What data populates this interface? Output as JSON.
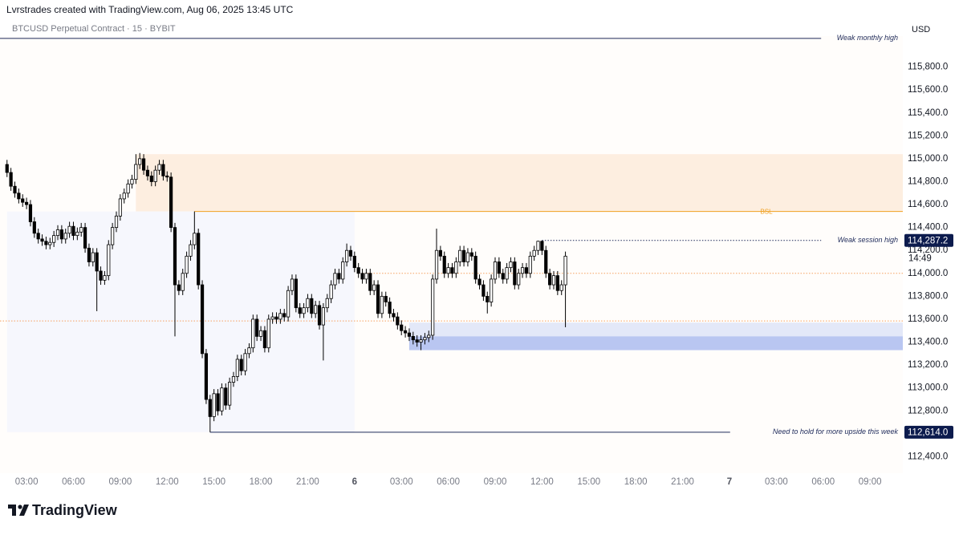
{
  "header": {
    "credit": "Lvrstrades created with TradingView.com, Aug 06, 2025 13:45 UTC",
    "symbol": "BTCUSD Perpetual Contract · 15 · BYBIT",
    "currency": "USD"
  },
  "footer": {
    "brand": "TradingView"
  },
  "chart_data": {
    "type": "candlestick",
    "x": [
      1.75,
      2,
      2.25,
      2.5,
      2.75,
      3,
      3.25,
      3.5,
      3.75,
      4,
      4.25,
      4.5,
      4.75,
      5,
      5.25,
      5.5,
      5.75,
      6,
      6.25,
      6.5,
      6.75,
      7,
      7.25,
      7.5,
      7.75,
      8,
      8.25,
      8.5,
      8.75,
      9,
      9.25,
      9.5,
      9.75,
      10,
      10.25,
      10.5,
      10.75,
      11,
      11.25,
      11.5,
      11.75,
      12,
      12.25,
      12.5,
      12.75,
      13,
      13.25,
      13.5,
      13.75,
      14,
      14.25,
      14.5,
      14.75,
      15,
      15.25,
      15.5,
      15.75,
      16,
      16.25,
      16.5,
      16.75,
      17,
      17.25,
      17.5,
      17.75,
      18,
      18.25,
      18.5,
      18.75,
      19,
      19.25,
      19.5,
      19.75,
      20,
      20.25,
      20.5,
      20.75,
      21,
      21.25,
      21.5,
      21.75,
      22,
      22.25,
      22.5,
      22.75,
      23,
      23.25,
      23.5,
      23.75,
      24,
      24.25,
      24.5,
      24.75,
      25,
      25.25,
      25.5,
      25.75,
      26,
      26.25,
      26.5,
      26.75,
      27,
      27.25,
      27.5,
      27.75,
      28,
      28.25,
      28.5,
      28.75,
      29,
      29.25,
      29.5,
      29.75,
      30,
      30.25,
      30.5,
      30.75,
      31,
      31.25,
      31.5,
      31.75,
      32,
      32.25,
      32.5,
      32.75,
      33,
      33.25,
      33.5,
      33.75,
      34,
      34.25,
      34.5,
      34.75,
      35,
      35.25,
      35.5,
      35.75,
      36,
      36.25,
      36.5,
      36.75,
      37,
      37.25,
      37.5
    ],
    "open": [
      114950,
      114880,
      114760,
      114700,
      114650,
      114620,
      114600,
      114450,
      114350,
      114300,
      114280,
      114250,
      114270,
      114330,
      114380,
      114300,
      114350,
      114410,
      114330,
      114360,
      114400,
      114220,
      114100,
      114180,
      114020,
      113940,
      113980,
      114250,
      114400,
      114500,
      114650,
      114700,
      114780,
      114820,
      114950,
      115000,
      114900,
      114850,
      114800,
      114900,
      114950,
      114850,
      114840,
      114400,
      113900,
      113850,
      114000,
      114150,
      114250,
      114350,
      113900,
      113300,
      112900,
      112750,
      112950,
      112800,
      113000,
      112850,
      113050,
      113100,
      113250,
      113150,
      113300,
      113350,
      113600,
      113450,
      113500,
      113350,
      113600,
      113620,
      113600,
      113650,
      113620,
      113850,
      113950,
      113700,
      113650,
      113700,
      113780,
      113650,
      113720,
      113550,
      113700,
      113780,
      113900,
      114000,
      113950,
      114100,
      114200,
      114150,
      114050,
      114000,
      113950,
      114000,
      113850,
      113900,
      113650,
      113800,
      113750,
      113650,
      113620,
      113550,
      113500,
      113480,
      113450,
      113420,
      113400,
      113420,
      113440,
      113460,
      113950,
      114200,
      114150,
      114000,
      114050,
      114000,
      114100,
      114200,
      114100,
      114180,
      114150,
      113950,
      113900,
      113800,
      113750,
      113950,
      114100,
      114000,
      113950,
      114050,
      114100,
      113900,
      114000,
      114050,
      114000,
      114150,
      114200,
      114280,
      114200,
      114000,
      113900,
      113980,
      113850,
      113900
    ],
    "high": [
      114990,
      114920,
      114800,
      114740,
      114690,
      114660,
      114640,
      114490,
      114390,
      114340,
      114320,
      114310,
      114370,
      114420,
      114420,
      114390,
      114450,
      114450,
      114400,
      114440,
      114440,
      114260,
      114220,
      114220,
      114060,
      114020,
      114290,
      114440,
      114540,
      114690,
      114740,
      114820,
      114860,
      115040,
      115050,
      115040,
      114940,
      114890,
      114940,
      114990,
      114990,
      114890,
      114880,
      114440,
      113940,
      114040,
      114190,
      114290,
      114540,
      114390,
      113940,
      113340,
      112940,
      112990,
      112990,
      113040,
      113040,
      113090,
      113140,
      113290,
      113290,
      113340,
      113390,
      113640,
      113640,
      113540,
      113540,
      113640,
      113660,
      113660,
      113690,
      113690,
      113890,
      113990,
      113990,
      113740,
      113740,
      113820,
      113820,
      113760,
      113760,
      113740,
      113820,
      113940,
      114040,
      114040,
      114140,
      114260,
      114240,
      114190,
      114090,
      114040,
      114040,
      114040,
      113940,
      113940,
      113840,
      113840,
      113790,
      113690,
      113660,
      113590,
      113540,
      113520,
      113490,
      113460,
      113460,
      113480,
      113500,
      113990,
      114390,
      114240,
      114190,
      114090,
      114090,
      114140,
      114240,
      114240,
      114220,
      114220,
      114190,
      113990,
      113940,
      113840,
      113990,
      114140,
      114140,
      114040,
      114090,
      114140,
      114140,
      114040,
      114090,
      114090,
      114190,
      114240,
      114285,
      114287.2,
      114240,
      114040,
      114020,
      114020,
      113940,
      114190
    ],
    "low": [
      114840,
      114720,
      114660,
      114610,
      114580,
      114560,
      114410,
      114310,
      114260,
      114240,
      114210,
      114210,
      114230,
      114290,
      114260,
      114260,
      114310,
      114290,
      114290,
      114320,
      114180,
      114060,
      114060,
      113670,
      113900,
      113900,
      113940,
      114210,
      114360,
      114460,
      114610,
      114660,
      114740,
      114780,
      114910,
      114860,
      114810,
      114760,
      114760,
      114860,
      114810,
      114800,
      114360,
      113450,
      113810,
      113810,
      113960,
      114110,
      114210,
      113860,
      113260,
      112860,
      112614,
      112710,
      112760,
      112760,
      112810,
      112810,
      113010,
      113060,
      113110,
      113110,
      113260,
      113310,
      113410,
      113410,
      113310,
      113310,
      113560,
      113560,
      113560,
      113580,
      113580,
      113810,
      113660,
      113610,
      113610,
      113660,
      113610,
      113610,
      113510,
      113240,
      113660,
      113740,
      113860,
      113910,
      113910,
      114060,
      114110,
      114010,
      113960,
      113910,
      113910,
      113810,
      113810,
      113610,
      113610,
      113710,
      113610,
      113580,
      113510,
      113460,
      113440,
      113410,
      113380,
      113360,
      113330,
      113380,
      113400,
      113420,
      113910,
      114110,
      113960,
      113960,
      113960,
      113960,
      114060,
      114060,
      114060,
      114110,
      113910,
      113860,
      113760,
      113650,
      113710,
      113910,
      113960,
      113910,
      113910,
      114010,
      113860,
      113860,
      113960,
      113960,
      113960,
      114110,
      114160,
      114160,
      113960,
      113860,
      113860,
      113810,
      113810,
      113530
    ],
    "close": [
      114880,
      114760,
      114700,
      114650,
      114620,
      114600,
      114450,
      114350,
      114300,
      114280,
      114250,
      114270,
      114330,
      114380,
      114300,
      114350,
      114410,
      114330,
      114360,
      114400,
      114220,
      114100,
      114180,
      114020,
      113940,
      113980,
      114250,
      114400,
      114500,
      114650,
      114700,
      114780,
      114820,
      114950,
      115000,
      114900,
      114850,
      114800,
      114900,
      114950,
      114850,
      114840,
      114400,
      113900,
      113850,
      114000,
      114150,
      114250,
      114350,
      113900,
      113300,
      112900,
      112750,
      112950,
      112800,
      113000,
      112850,
      113050,
      113100,
      113250,
      113150,
      113300,
      113350,
      113600,
      113450,
      113500,
      113350,
      113600,
      113620,
      113600,
      113650,
      113620,
      113850,
      113950,
      113700,
      113650,
      113700,
      113780,
      113650,
      113720,
      113550,
      113700,
      113780,
      113900,
      114000,
      113950,
      114100,
      114200,
      114150,
      114050,
      114000,
      113950,
      114000,
      113850,
      113900,
      113650,
      113800,
      113750,
      113650,
      113620,
      113550,
      113500,
      113480,
      113450,
      113420,
      113400,
      113420,
      113440,
      113460,
      113950,
      114200,
      114150,
      114000,
      114050,
      114000,
      114100,
      114200,
      114100,
      114180,
      114150,
      113950,
      113900,
      113800,
      113750,
      113950,
      114100,
      114000,
      113950,
      114050,
      114100,
      113900,
      114000,
      114050,
      114000,
      114150,
      114200,
      114280,
      114200,
      114000,
      113900,
      113980,
      113850,
      113900,
      114150
    ],
    "up_color": "#ffffff",
    "down_color": "#000000",
    "edge_color": "#000000",
    "xlim": [
      1.3,
      59.1
    ],
    "xticks": [
      {
        "value": 3,
        "label": "03:00"
      },
      {
        "value": 6,
        "label": "06:00"
      },
      {
        "value": 9,
        "label": "09:00"
      },
      {
        "value": 12,
        "label": "12:00"
      },
      {
        "value": 15,
        "label": "15:00"
      },
      {
        "value": 18,
        "label": "18:00"
      },
      {
        "value": 21,
        "label": "21:00"
      },
      {
        "value": 24,
        "label": "6"
      },
      {
        "value": 27,
        "label": "03:00"
      },
      {
        "value": 30,
        "label": "06:00"
      },
      {
        "value": 33,
        "label": "09:00"
      },
      {
        "value": 36,
        "label": "12:00"
      },
      {
        "value": 39,
        "label": "15:00"
      },
      {
        "value": 42,
        "label": "18:00"
      },
      {
        "value": 45,
        "label": "21:00"
      },
      {
        "value": 48,
        "label": "7"
      },
      {
        "value": 51,
        "label": "03:00"
      },
      {
        "value": 54,
        "label": "06:00"
      },
      {
        "value": 57,
        "label": "09:00"
      }
    ],
    "ylim": [
      112270,
      116070
    ],
    "yticks": [
      {
        "value": 112400,
        "label": "112,400.0"
      },
      {
        "value": 112600,
        "label": "112,600.0"
      },
      {
        "value": 112800,
        "label": "112,800.0"
      },
      {
        "value": 113000,
        "label": "113,000.0"
      },
      {
        "value": 113200,
        "label": "113,200.0"
      },
      {
        "value": 113400,
        "label": "113,400.0"
      },
      {
        "value": 113600,
        "label": "113,600.0"
      },
      {
        "value": 113800,
        "label": "113,800.0"
      },
      {
        "value": 114000,
        "label": "114,000.0"
      },
      {
        "value": 114200,
        "label": "114,200.0"
      },
      {
        "value": 114400,
        "label": "114,400.0"
      },
      {
        "value": 114600,
        "label": "114,600.0"
      },
      {
        "value": 114800,
        "label": "114,800.0"
      },
      {
        "value": 115000,
        "label": "115,000.0"
      },
      {
        "value": 115200,
        "label": "115,200.0"
      },
      {
        "value": 115400,
        "label": "115,400.0"
      },
      {
        "value": 115600,
        "label": "115,600.0"
      },
      {
        "value": 115800,
        "label": "115,800.0"
      }
    ],
    "zones": [
      {
        "y0": 114540,
        "y1": 115040,
        "x0": 10,
        "color": "#fdeee0"
      },
      {
        "y0": 112614,
        "y1": 114540,
        "x0": 1.75,
        "x1": 24,
        "color": "#f6f7fd"
      },
      {
        "y0": 113330,
        "y1": 113570,
        "x0": 27.5,
        "color": "#e3e8f8"
      },
      {
        "y0": 113330,
        "y1": 113450,
        "x0": 27.5,
        "color": "#b9c6f1"
      }
    ],
    "levels": [
      {
        "label": "Weak monthly high",
        "value": 116050,
        "color": "#1e2a5a",
        "style": "solid"
      },
      {
        "label": "BSL",
        "value": 114540,
        "x0": 13.75,
        "color": "#f0a020",
        "style": "solid",
        "label_align": "center"
      },
      {
        "label": "Weak session high",
        "value": 114287.2,
        "value_label": "114,287.2",
        "x0": 36,
        "color": "#1e2a5a",
        "style": "dotted"
      },
      {
        "label": "Need to hold for more upside this week",
        "value": 112614,
        "value_label": "112,614.0",
        "x0": 14.75,
        "color": "#1e2a5a",
        "style": "solid"
      },
      {
        "value": 113585,
        "color": "#f5a060",
        "style": "dotted"
      },
      {
        "value": 114000,
        "x0": 24.5,
        "color": "#f5a060",
        "style": "dotted"
      }
    ],
    "countdown": "14:49"
  }
}
